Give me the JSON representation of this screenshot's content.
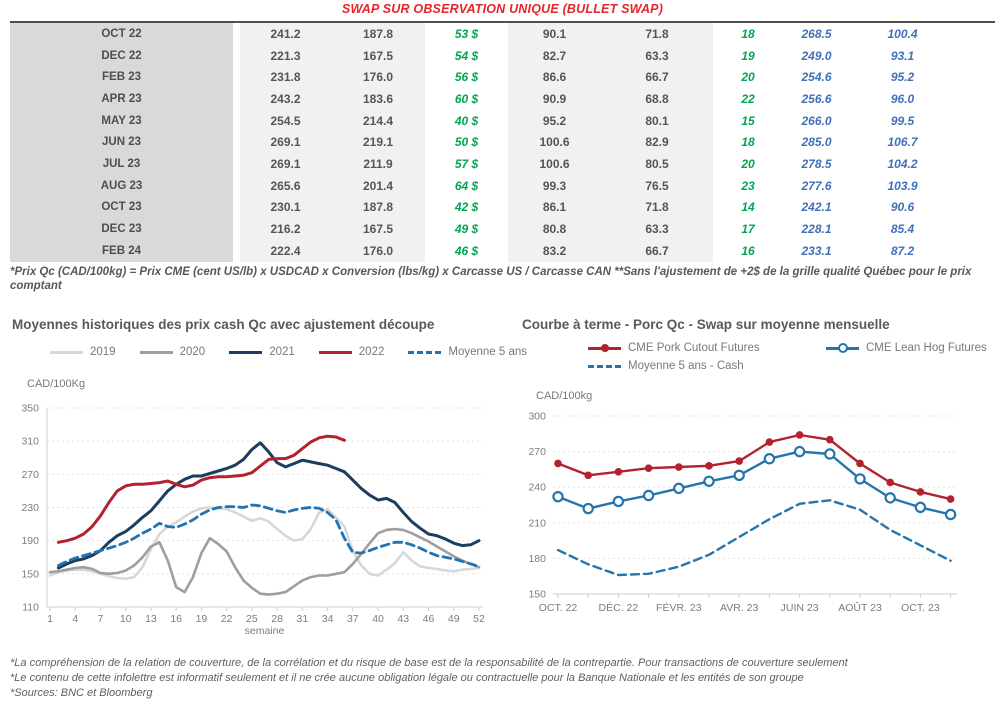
{
  "page": {
    "title": "SWAP SUR OBSERVATION UNIQUE (BULLET SWAP)"
  },
  "table": {
    "rows": [
      {
        "month": "OCT 22",
        "v1": "241.2",
        "v2": "187.8",
        "spread": "53 $",
        "v3": "90.1",
        "v4": "71.8",
        "basis": "18",
        "fwd_cad": "268.5",
        "fwd_us": "100.4"
      },
      {
        "month": "DEC 22",
        "v1": "221.3",
        "v2": "167.5",
        "spread": "54 $",
        "v3": "82.7",
        "v4": "63.3",
        "basis": "19",
        "fwd_cad": "249.0",
        "fwd_us": "93.1"
      },
      {
        "month": "FEB 23",
        "v1": "231.8",
        "v2": "176.0",
        "spread": "56 $",
        "v3": "86.6",
        "v4": "66.7",
        "basis": "20",
        "fwd_cad": "254.6",
        "fwd_us": "95.2"
      },
      {
        "month": "APR 23",
        "v1": "243.2",
        "v2": "183.6",
        "spread": "60 $",
        "v3": "90.9",
        "v4": "68.8",
        "basis": "22",
        "fwd_cad": "256.6",
        "fwd_us": "96.0"
      },
      {
        "month": "MAY 23",
        "v1": "254.5",
        "v2": "214.4",
        "spread": "40 $",
        "v3": "95.2",
        "v4": "80.1",
        "basis": "15",
        "fwd_cad": "266.0",
        "fwd_us": "99.5"
      },
      {
        "month": "JUN 23",
        "v1": "269.1",
        "v2": "219.1",
        "spread": "50 $",
        "v3": "100.6",
        "v4": "82.9",
        "basis": "18",
        "fwd_cad": "285.0",
        "fwd_us": "106.7"
      },
      {
        "month": "JUL 23",
        "v1": "269.1",
        "v2": "211.9",
        "spread": "57 $",
        "v3": "100.6",
        "v4": "80.5",
        "basis": "20",
        "fwd_cad": "278.5",
        "fwd_us": "104.2"
      },
      {
        "month": "AUG 23",
        "v1": "265.6",
        "v2": "201.4",
        "spread": "64 $",
        "v3": "99.3",
        "v4": "76.5",
        "basis": "23",
        "fwd_cad": "277.6",
        "fwd_us": "103.9"
      },
      {
        "month": "OCT 23",
        "v1": "230.1",
        "v2": "187.8",
        "spread": "42 $",
        "v3": "86.1",
        "v4": "71.8",
        "basis": "14",
        "fwd_cad": "242.1",
        "fwd_us": "90.6"
      },
      {
        "month": "DEC 23",
        "v1": "216.2",
        "v2": "167.5",
        "spread": "49 $",
        "v3": "80.8",
        "v4": "63.3",
        "basis": "17",
        "fwd_cad": "228.1",
        "fwd_us": "85.4"
      },
      {
        "month": "FEB 24",
        "v1": "222.4",
        "v2": "176.0",
        "spread": "46 $",
        "v3": "83.2",
        "v4": "66.7",
        "basis": "16",
        "fwd_cad": "233.1",
        "fwd_us": "87.2"
      }
    ],
    "footnote": "*Prix Qc (CAD/100kg) = Prix CME (cent US/lb) x USDCAD x Conversion (lbs/kg) x Carcasse US / Carcasse CAN **Sans l'ajustement de +2$ de la grille qualité Québec pour le prix comptant"
  },
  "chart_data": [
    {
      "type": "line",
      "title": "Moyennes historiques des prix cash Qc avec ajustement découpe",
      "ylabel": "CAD/100Kg",
      "xlabel": "semaine",
      "ylim": [
        110,
        350
      ],
      "yticks": [
        110,
        150,
        190,
        230,
        270,
        310,
        350
      ],
      "xticks": [
        1,
        4,
        7,
        10,
        13,
        16,
        19,
        22,
        25,
        28,
        31,
        34,
        37,
        40,
        43,
        46,
        49,
        52
      ],
      "xlim": [
        1,
        52
      ],
      "grid": true,
      "legend_position": "top",
      "series": [
        {
          "name": "2019",
          "color": "#d8d8d8",
          "style": "solid",
          "width": 2.6,
          "x_start": 1,
          "values": [
            148,
            152,
            154,
            155,
            155,
            153,
            150,
            147,
            145,
            144,
            146,
            158,
            180,
            198,
            207,
            212,
            219,
            225,
            229,
            230,
            229,
            228,
            224,
            219,
            214,
            217,
            213,
            204,
            196,
            190,
            192,
            204,
            224,
            228,
            218,
            207,
            178,
            160,
            150,
            148,
            155,
            163,
            176,
            166,
            159,
            157,
            156,
            154,
            153,
            155,
            156,
            157
          ]
        },
        {
          "name": "2020",
          "color": "#9e9e9e",
          "style": "solid",
          "width": 2.6,
          "x_start": 1,
          "values": [
            152,
            153,
            155,
            157,
            158,
            156,
            151,
            150,
            151,
            154,
            160,
            170,
            183,
            188,
            166,
            134,
            128,
            146,
            175,
            193,
            186,
            177,
            158,
            142,
            133,
            126,
            125,
            126,
            128,
            135,
            142,
            146,
            148,
            148,
            150,
            152,
            162,
            174,
            187,
            199,
            203,
            204,
            203,
            199,
            194,
            189,
            183,
            177,
            171,
            166,
            162,
            158
          ]
        },
        {
          "name": "2021",
          "color": "#1c3d5e",
          "style": "solid",
          "width": 3,
          "x_start": 2,
          "values": [
            157,
            162,
            166,
            168,
            172,
            178,
            188,
            196,
            201,
            209,
            218,
            226,
            238,
            250,
            258,
            264,
            268,
            268,
            271,
            274,
            277,
            281,
            288,
            300,
            308,
            297,
            284,
            279,
            283,
            287,
            285,
            283,
            281,
            277,
            273,
            263,
            253,
            245,
            239,
            241,
            236,
            224,
            213,
            205,
            198,
            196,
            192,
            187,
            184,
            185,
            190
          ]
        },
        {
          "name": "2022",
          "color": "#b22230",
          "style": "solid",
          "width": 3,
          "x_start": 2,
          "values": [
            188,
            190,
            193,
            198,
            207,
            220,
            236,
            250,
            256,
            258,
            258,
            259,
            260,
            262,
            258,
            255,
            257,
            263,
            266,
            267,
            267,
            268,
            269,
            272,
            280,
            288,
            289,
            289,
            293,
            301,
            309,
            314,
            316,
            315,
            311
          ]
        },
        {
          "name": "Moyenne 5 ans",
          "color": "#2273b2",
          "style": "dashed",
          "width": 2.8,
          "x_start": 2,
          "values": [
            160,
            165,
            169,
            172,
            175,
            178,
            181,
            184,
            188,
            193,
            199,
            204,
            211,
            207,
            206,
            210,
            215,
            222,
            227,
            230,
            231,
            231,
            230,
            233,
            232,
            229,
            226,
            224,
            227,
            229,
            230,
            229,
            224,
            215,
            193,
            176,
            175,
            178,
            182,
            185,
            188,
            188,
            185,
            181,
            176,
            172,
            170,
            168,
            165,
            162,
            159
          ]
        }
      ]
    },
    {
      "type": "line",
      "title": "Courbe à terme - Porc Qc - Swap sur moyenne mensuelle",
      "ylabel": "CAD/100kg",
      "xlabel": "",
      "ylim": [
        150,
        300
      ],
      "yticks": [
        150,
        180,
        210,
        240,
        270,
        300
      ],
      "n_points": 14,
      "x_tick_labels": [
        "OCT. 22",
        "DÉC. 22",
        "FÉVR. 23",
        "AVR. 23",
        "JUIN 23",
        "AOÛT 23",
        "OCT. 23"
      ],
      "x_tick_label_every": 2,
      "grid": true,
      "legend_position": "top",
      "series": [
        {
          "name": "CME Pork Cutout Futures",
          "color": "#b22230",
          "style": "solid",
          "marker": "filled-circle",
          "width": 2.4,
          "values": [
            260,
            250,
            253,
            256,
            257,
            258,
            262,
            278,
            284,
            280,
            260,
            244,
            236,
            230
          ]
        },
        {
          "name": "CME Lean Hog Futures",
          "color": "#2575ad",
          "style": "solid",
          "marker": "open-circle",
          "width": 2.4,
          "values": [
            232,
            222,
            228,
            233,
            239,
            245,
            250,
            264,
            270,
            268,
            247,
            231,
            223,
            217
          ]
        },
        {
          "name": "Moyenne 5 ans - Cash",
          "color": "#2575ad",
          "style": "dashed",
          "marker": "none",
          "width": 2.4,
          "values": [
            187,
            175,
            166,
            167,
            173,
            183,
            198,
            213,
            226,
            229,
            221,
            204,
            191,
            178
          ]
        }
      ]
    }
  ],
  "footer": {
    "lines": [
      "*La compréhension de la relation de couverture, de la corrélation et du risque de base est de la responsabilité de la contrepartie. Pour transactions de couverture seulement",
      "*Le contenu de cette infolettre est informatif seulement et il ne crée aucune obligation légale ou contractuelle pour la Banque Nationale et les entités de son groupe",
      "*Sources: BNC et Bloomberg"
    ]
  }
}
